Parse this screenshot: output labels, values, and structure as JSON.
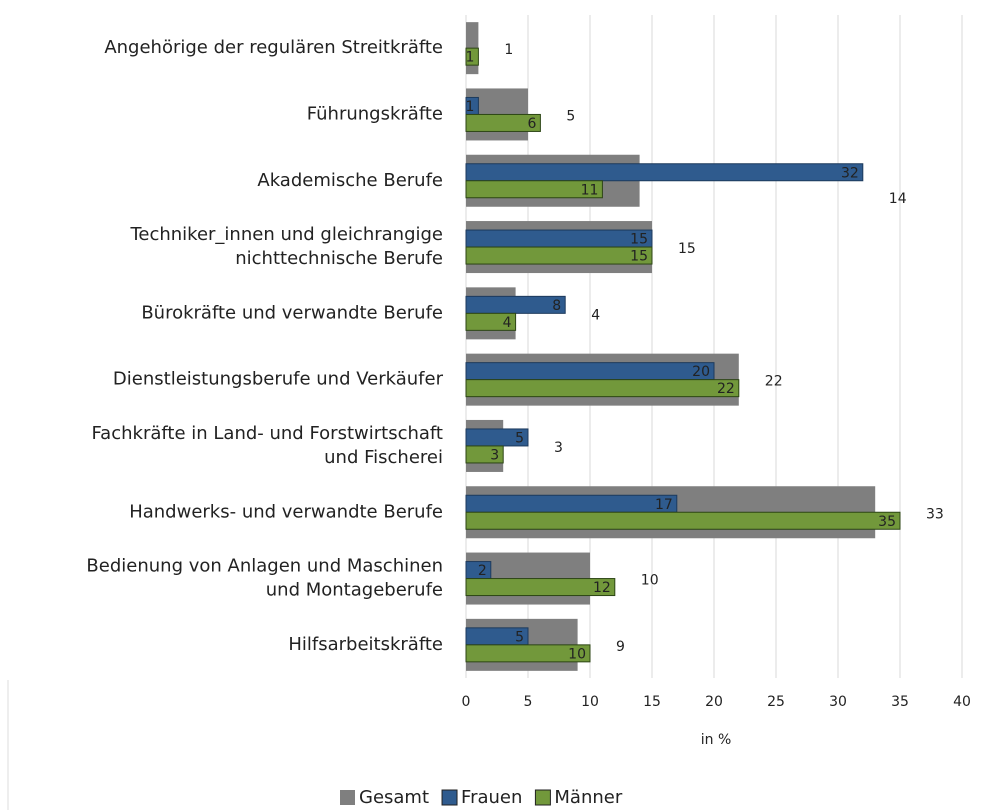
{
  "chart_data": {
    "type": "bar",
    "orientation": "horizontal",
    "x_label": "in %",
    "categories": [
      [
        "Angehörige der regulären Streitkräfte"
      ],
      [
        "Führungskräfte"
      ],
      [
        "Akademische Berufe"
      ],
      [
        "Techniker_innen und gleichrangige",
        "nichttechnische Berufe"
      ],
      [
        "Bürokräfte und verwandte Berufe"
      ],
      [
        "Dienstleistungsberufe und Verkäufer"
      ],
      [
        "Fachkräfte in Land- und Forstwirtschaft",
        "und Fischerei"
      ],
      [
        "Handwerks- und verwandte Berufe"
      ],
      [
        "Bedienung von Anlagen und Maschinen",
        "und Montageberufe"
      ],
      [
        "Hilfsarbeitskräfte"
      ]
    ],
    "series": [
      {
        "name": "Gesamt",
        "color": "#7f7f7f",
        "values": [
          1,
          5,
          14,
          15,
          4,
          22,
          3,
          33,
          10,
          9
        ]
      },
      {
        "name": "Frauen",
        "color": "#2f5b8e",
        "values": [
          null,
          1,
          32,
          15,
          8,
          20,
          5,
          17,
          2,
          5
        ]
      },
      {
        "name": "Männer",
        "color": "#72983b",
        "values": [
          1,
          6,
          11,
          15,
          4,
          22,
          3,
          35,
          12,
          10
        ]
      }
    ],
    "xlim": [
      0,
      40
    ],
    "xticks": [
      0,
      5,
      10,
      15,
      20,
      25,
      30,
      35,
      40
    ],
    "grid": true,
    "legend": "bottom"
  }
}
